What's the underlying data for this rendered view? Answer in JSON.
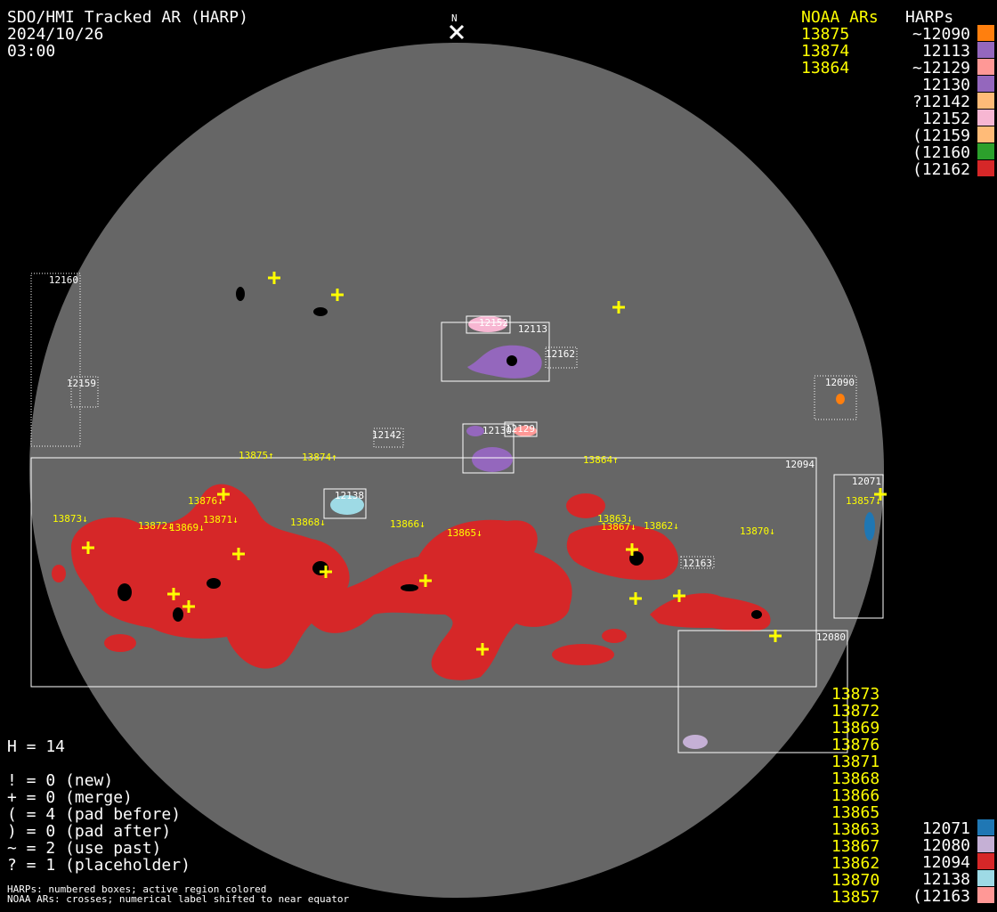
{
  "header": {
    "title": "SDO/HMI Tracked AR (HARP)",
    "date": "2024/10/26",
    "time": "03:00",
    "north_label": "N"
  },
  "noaa_header": "NOAA ARs",
  "harps_header": "HARPs",
  "noaa_top": [
    "13875",
    "13874",
    "13864"
  ],
  "harps_top": [
    {
      "label": "~12090",
      "color": "#ff7f0e"
    },
    {
      "label": "12113",
      "color": "#9467bd"
    },
    {
      "label": "~12129",
      "color": "#ff9896"
    },
    {
      "label": "12130",
      "color": "#9467bd"
    },
    {
      "label": "?12142",
      "color": "#ffbb78"
    },
    {
      "label": "12152",
      "color": "#f7b6d2"
    },
    {
      "label": "(12159",
      "color": "#ffbb78"
    },
    {
      "label": "(12160",
      "color": "#2ca02c"
    },
    {
      "label": "(12162",
      "color": "#d62728"
    }
  ],
  "noaa_bottom": [
    "13873",
    "13872",
    "13869",
    "13876",
    "13871",
    "13868",
    "13866",
    "13865",
    "13863",
    "13867",
    "13862",
    "13870",
    "13857"
  ],
  "harps_bottom": [
    {
      "label": "12071",
      "color": "#1f77b4"
    },
    {
      "label": "12080",
      "color": "#c5b0d5"
    },
    {
      "label": "12094",
      "color": "#d62728"
    },
    {
      "label": "12138",
      "color": "#9edae5"
    },
    {
      "label": "(12163",
      "color": "#ff9896"
    }
  ],
  "stats": {
    "h": "H = 14",
    "lines": [
      "! = 0 (new)",
      "+ = 0 (merge)",
      "( = 4 (pad before)",
      ") = 0 (pad after)",
      "~ = 2 (use past)",
      "? = 1 (placeholder)"
    ]
  },
  "footnotes": [
    "HARPs: numbered boxes; active region colored",
    "NOAA ARs: crosses; numerical label shifted to near equator"
  ],
  "disk": {
    "harp_boxes": [
      {
        "label": "12160",
        "dotted": true
      },
      {
        "label": "12159",
        "dotted": true
      },
      {
        "label": "12094",
        "dotted": false
      },
      {
        "label": "12138",
        "dotted": false
      },
      {
        "label": "12152",
        "dotted": false
      },
      {
        "label": "12113",
        "dotted": false
      },
      {
        "label": "12162",
        "dotted": true
      },
      {
        "label": "12130",
        "dotted": false
      },
      {
        "label": "12129",
        "dotted": false
      },
      {
        "label": "12142",
        "dotted": true
      },
      {
        "label": "12090",
        "dotted": true
      },
      {
        "label": "12071",
        "dotted": false
      },
      {
        "label": "12163",
        "dotted": true
      },
      {
        "label": "12080",
        "dotted": false
      }
    ],
    "noaa_labels": [
      "13875↑",
      "13874↑",
      "13864↑",
      "13876↓",
      "13873↓",
      "13872↓",
      "13869↓",
      "13871↓",
      "13868↓",
      "13866↓",
      "13865↓",
      "13863↓",
      "13867↓",
      "13862↓",
      "13870↓",
      "13857↓"
    ]
  },
  "colors": {
    "disk": "#666666",
    "noaa": "#ffff00",
    "box": "#ffffff"
  }
}
